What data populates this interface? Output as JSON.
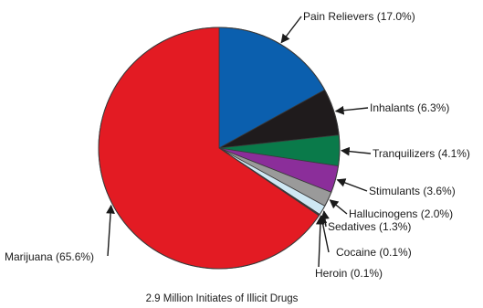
{
  "chart_data": {
    "type": "pie",
    "caption": "2.9 Million Initiates of Illicit Drugs",
    "slices": [
      {
        "label": "Pain Relievers (17.0%)",
        "value": 17.0,
        "color": "#0b5fae"
      },
      {
        "label": "Inhalants (6.3%)",
        "value": 6.3,
        "color": "#1f1b1c"
      },
      {
        "label": "Tranquilizers (4.1%)",
        "value": 4.1,
        "color": "#0a7a4a"
      },
      {
        "label": "Stimulants (3.6%)",
        "value": 3.6,
        "color": "#8b2e9a"
      },
      {
        "label": "Hallucinogens (2.0%)",
        "value": 2.0,
        "color": "#9a9a9a"
      },
      {
        "label": "Sedatives (1.3%)",
        "value": 1.3,
        "color": "#cfe8f4"
      },
      {
        "label": "Cocaine (0.1%)",
        "value": 0.1,
        "color": "#c8c800"
      },
      {
        "label": "Heroin (0.1%)",
        "value": 0.1,
        "color": "#2e7d32"
      },
      {
        "label": "Marijuana (65.6%)",
        "value": 65.6,
        "color": "#e31b23"
      }
    ]
  }
}
